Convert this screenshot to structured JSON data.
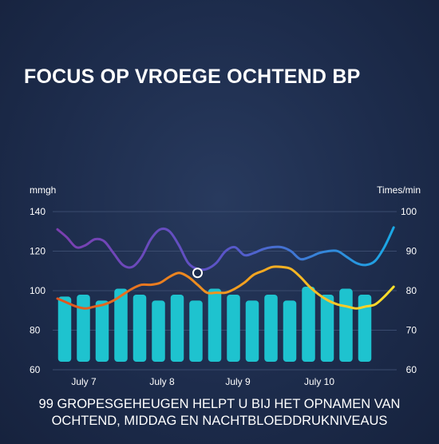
{
  "title": "FOCUS OP VROEGE OCHTEND BP",
  "caption": {
    "line1": "99 GROPESGEHEUGEN HELPT U BIJ HET OPNAMEN  VAN",
    "line2": "OCHTEND, MIDDAG EN NACHTBLOEDDRUKNIVEAUS"
  },
  "colors": {
    "bars": "#1ec3cf",
    "grid": "#3a4b6e",
    "line_pressure_start": "#7b3fb0",
    "line_pressure_end": "#1aa9e6",
    "line_rate_start": "#e0541f",
    "line_rate_end": "#ffe02a"
  },
  "chart_data": {
    "type": "bar",
    "title": "",
    "ylabel_left": "mmgh",
    "ylabel_right": "Times/min",
    "ylim_left": [
      60,
      140
    ],
    "ylim_right": [
      60,
      100
    ],
    "yticks_left": [
      "140",
      "120",
      "100",
      "80",
      "60"
    ],
    "yticks_right": [
      "100",
      "90",
      "80",
      "70",
      "60"
    ],
    "grid": true,
    "x_tick_labels": [
      "July 7",
      "July 8",
      "July 9",
      "July 10"
    ],
    "bars": {
      "axis": "left",
      "values": [
        97,
        98,
        95,
        101,
        98,
        95,
        98,
        95,
        101,
        98,
        95,
        98,
        95,
        102,
        98,
        101,
        98
      ]
    },
    "lines": [
      {
        "axis": "left",
        "x": [
          0,
          0.5,
          1.0,
          1.5,
          2.0,
          2.5,
          3.0,
          3.5,
          4.0,
          4.5,
          5.0,
          5.5,
          6.0,
          6.5,
          7.0,
          7.5,
          8.0,
          8.5,
          9.0,
          9.5,
          10.0,
          10.5,
          11.0,
          11.5,
          12.0,
          12.5,
          13.0,
          13.5,
          14.0,
          14.5,
          15.0,
          15.5,
          16.0,
          16.5,
          17.0,
          17.5,
          18.0
        ],
        "values": [
          131,
          127,
          122,
          123,
          126,
          125,
          119,
          113,
          112,
          117,
          126,
          131,
          130,
          123,
          114,
          111,
          111,
          114,
          120,
          122,
          118,
          119,
          121,
          122,
          122,
          120,
          116,
          117,
          119,
          120,
          120,
          117,
          114,
          113,
          115,
          122,
          132
        ]
      },
      {
        "axis": "left",
        "x": [
          0,
          0.5,
          1.0,
          1.5,
          2.0,
          2.5,
          3.0,
          3.5,
          4.0,
          4.5,
          5.0,
          5.5,
          6.0,
          6.5,
          7.0,
          7.5,
          8.0,
          8.5,
          9.0,
          9.5,
          10.0,
          10.5,
          11.0,
          11.5,
          12.0,
          12.5,
          13.0,
          13.5,
          14.0,
          14.5,
          15.0,
          15.5,
          16.0,
          16.5,
          17.0,
          17.5,
          18.0
        ],
        "values": [
          96,
          94,
          92,
          91,
          92,
          93,
          95,
          98,
          101,
          103,
          103,
          104,
          107,
          109,
          107,
          103,
          99,
          99,
          99,
          101,
          104,
          108,
          110,
          112,
          112,
          111,
          107,
          102,
          98,
          95,
          93,
          92,
          91,
          92,
          93,
          97,
          102
        ]
      }
    ],
    "highlight_point": {
      "x": 7.5,
      "value": 109
    }
  }
}
